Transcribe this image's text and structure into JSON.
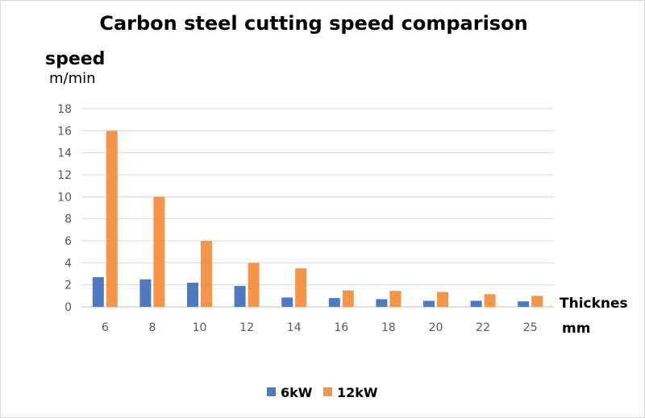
{
  "chart_data": {
    "type": "bar",
    "title": "Carbon steel cutting speed comparison",
    "ylabel": "speed",
    "yunit": "m/min",
    "xlabel": "Thicknes",
    "xunit": "mm",
    "categories": [
      "6",
      "8",
      "10",
      "12",
      "14",
      "16",
      "18",
      "20",
      "22",
      "25"
    ],
    "series": [
      {
        "name": "6kW",
        "color": "#4e7bc0",
        "values": [
          2.7,
          2.5,
          2.2,
          1.9,
          0.85,
          0.8,
          0.7,
          0.55,
          0.55,
          0.5
        ]
      },
      {
        "name": "12kW",
        "color": "#f5954a",
        "values": [
          16,
          10,
          6,
          4,
          3.5,
          1.5,
          1.45,
          1.35,
          1.15,
          1.0
        ]
      }
    ],
    "ylim": [
      0,
      18
    ],
    "yticks": [
      0,
      2,
      4,
      6,
      8,
      10,
      12,
      14,
      16,
      18
    ],
    "grid": true,
    "legend_position": "bottom"
  }
}
